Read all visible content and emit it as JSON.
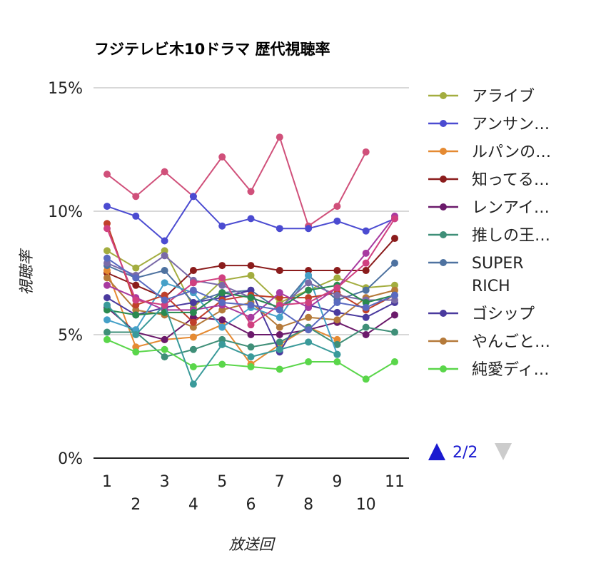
{
  "chart_data": {
    "type": "line",
    "title": "フジテレビ木10ドラマ 歴代視聴率",
    "xlabel": "放送回",
    "ylabel": "視聴率",
    "ylim": [
      0,
      15
    ],
    "y_ticks": [
      "0%",
      "5%",
      "10%",
      "15%"
    ],
    "x_ticks": [
      "1",
      "2",
      "3",
      "4",
      "5",
      "6",
      "7",
      "8",
      "9",
      "10",
      "11"
    ],
    "grid": true,
    "legend_position": "right",
    "pager": {
      "label": "2/2",
      "up_color": "#1a1ad0",
      "down_color": "#cccccc"
    },
    "legend": [
      {
        "name": "アライブ",
        "color": "#a3ad3f"
      },
      {
        "name": "アンサン…",
        "color": "#4b4bd1"
      },
      {
        "name": "ルパンの…",
        "color": "#e58a32"
      },
      {
        "name": "知ってる…",
        "color": "#8b1c1c"
      },
      {
        "name": "レンアイ…",
        "color": "#6b1a6b"
      },
      {
        "name": "推しの王…",
        "color": "#3f8f78"
      },
      {
        "name": "SUPER\nRICH",
        "color": "#4e72a0"
      },
      {
        "name": "ゴシップ",
        "color": "#4a3a9e"
      },
      {
        "name": "やんごと…",
        "color": "#b57a3a"
      },
      {
        "name": "純愛ディ…",
        "color": "#5ad64a"
      }
    ],
    "series": [
      {
        "color": "#d0507a",
        "values": [
          11.5,
          10.6,
          11.6,
          10.6,
          12.2,
          10.8,
          13.0,
          9.4,
          10.2,
          12.4,
          null
        ]
      },
      {
        "color": "#4b4bd1",
        "values": [
          10.2,
          9.8,
          8.8,
          10.6,
          9.4,
          9.7,
          9.3,
          9.3,
          9.6,
          9.2,
          9.7
        ]
      },
      {
        "color": "#a3ad3f",
        "values": [
          8.4,
          7.7,
          8.4,
          6.1,
          7.2,
          7.4,
          6.3,
          6.8,
          7.3,
          6.9,
          7.0
        ]
      },
      {
        "color": "#8b1c1c",
        "values": [
          7.5,
          7.0,
          6.5,
          7.6,
          7.8,
          7.8,
          7.6,
          7.6,
          7.6,
          7.6,
          8.9
        ]
      },
      {
        "color": "#e58a32",
        "values": [
          7.6,
          4.5,
          4.8,
          4.9,
          5.4,
          3.8,
          4.6,
          5.3,
          4.8,
          null,
          null
        ]
      },
      {
        "color": "#6b1a6b",
        "values": [
          6.1,
          5.1,
          4.8,
          5.7,
          5.6,
          5.0,
          5.0,
          5.2,
          5.5,
          5.0,
          5.8
        ]
      },
      {
        "color": "#3f8f78",
        "values": [
          5.1,
          5.1,
          4.1,
          4.4,
          4.8,
          4.5,
          4.7,
          5.3,
          4.6,
          5.3,
          5.1
        ]
      },
      {
        "color": "#4e72a0",
        "values": [
          7.8,
          7.3,
          7.6,
          6.3,
          6.7,
          6.8,
          6.0,
          7.4,
          6.4,
          6.8,
          7.9
        ]
      },
      {
        "color": "#4a3a9e",
        "values": [
          6.5,
          5.8,
          6.1,
          6.3,
          6.5,
          6.8,
          4.3,
          6.2,
          5.9,
          5.7,
          6.3
        ]
      },
      {
        "color": "#b57a3a",
        "values": [
          7.3,
          6.0,
          5.8,
          5.3,
          6.0,
          6.3,
          5.3,
          5.7,
          5.6,
          6.5,
          6.8
        ]
      },
      {
        "color": "#5ad64a",
        "values": [
          4.8,
          4.3,
          4.4,
          3.7,
          3.8,
          3.7,
          3.6,
          3.9,
          3.9,
          3.2,
          3.9
        ]
      },
      {
        "color": "#45a0c8",
        "values": [
          5.6,
          5.2,
          7.1,
          6.7,
          5.3,
          6.1,
          5.7,
          7.4,
          4.2,
          null,
          null
        ]
      },
      {
        "color": "#c0402a",
        "values": [
          9.5,
          6.2,
          6.6,
          5.5,
          6.4,
          6.6,
          6.5,
          6.5,
          6.7,
          6.0,
          6.6
        ]
      },
      {
        "color": "#7a6aa8",
        "values": [
          7.9,
          7.4,
          8.2,
          7.2,
          7.0,
          6.5,
          6.1,
          7.1,
          6.6,
          6.4,
          6.4
        ]
      },
      {
        "color": "#a83aa0",
        "values": [
          7.0,
          6.5,
          6.0,
          6.0,
          6.2,
          5.7,
          6.7,
          6.1,
          6.9,
          8.3,
          9.8
        ]
      },
      {
        "color": "#2a8a50",
        "values": [
          6.0,
          5.8,
          5.9,
          5.9,
          6.7,
          6.5,
          6.1,
          6.8,
          7.0,
          6.3,
          6.6
        ]
      },
      {
        "color": "#3a9a9a",
        "values": [
          6.2,
          5.0,
          6.2,
          3.0,
          4.6,
          4.1,
          4.4,
          4.7,
          4.2,
          null,
          null
        ]
      },
      {
        "color": "#d04080",
        "values": [
          9.3,
          6.4,
          6.2,
          7.1,
          7.3,
          5.4,
          6.2,
          6.3,
          6.9,
          7.9,
          9.7
        ]
      },
      {
        "color": "#5a6ac0",
        "values": [
          8.1,
          7.3,
          6.4,
          6.8,
          6.3,
          6.2,
          6.0,
          5.2,
          6.3,
          6.1,
          6.6
        ]
      }
    ]
  }
}
